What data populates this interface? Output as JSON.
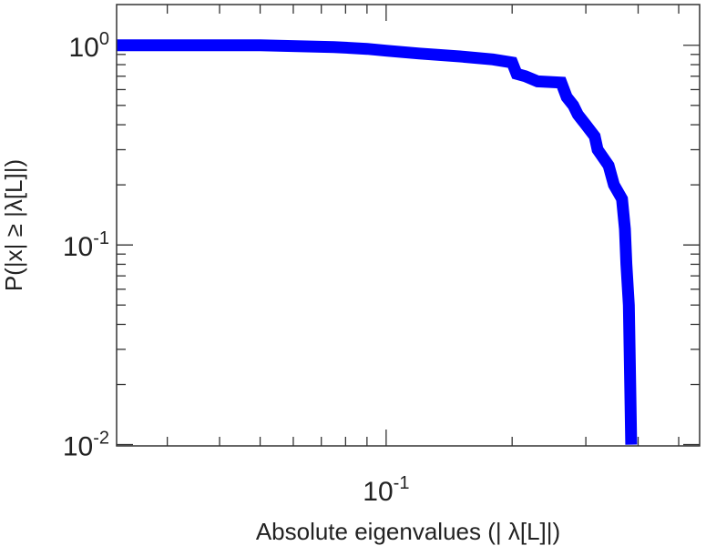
{
  "chart_data": {
    "type": "line",
    "title": "",
    "xlabel": "Absolute eigenvalues (|     λ[L]|)",
    "ylabel": "P(|x|  ≥ |λ[L]|)",
    "x_scale": "log",
    "y_scale": "log",
    "xlim": [
      0.0227,
      0.561
    ],
    "ylim": [
      0.00985,
      1.6
    ],
    "grid": false,
    "legend": "none",
    "line_color": "#0000ff",
    "x_ticks": [
      {
        "base": "10",
        "exp": "-1",
        "value": 0.1
      }
    ],
    "y_ticks": [
      {
        "base": "10",
        "exp": "0",
        "value": 1
      },
      {
        "base": "10",
        "exp": "-1",
        "value": 0.1
      },
      {
        "base": "10",
        "exp": "-2",
        "value": 0.01
      }
    ],
    "series": [
      {
        "values": [
          {
            "x": 0.0227,
            "y": 1.0
          },
          {
            "x": 0.05,
            "y": 1.0
          },
          {
            "x": 0.075,
            "y": 0.98
          },
          {
            "x": 0.09,
            "y": 0.96
          },
          {
            "x": 0.1,
            "y": 0.94
          },
          {
            "x": 0.12,
            "y": 0.91
          },
          {
            "x": 0.15,
            "y": 0.88
          },
          {
            "x": 0.18,
            "y": 0.85
          },
          {
            "x": 0.2,
            "y": 0.82
          },
          {
            "x": 0.205,
            "y": 0.72
          },
          {
            "x": 0.215,
            "y": 0.7
          },
          {
            "x": 0.23,
            "y": 0.66
          },
          {
            "x": 0.262,
            "y": 0.65
          },
          {
            "x": 0.27,
            "y": 0.55
          },
          {
            "x": 0.28,
            "y": 0.5
          },
          {
            "x": 0.287,
            "y": 0.45
          },
          {
            "x": 0.3,
            "y": 0.4
          },
          {
            "x": 0.315,
            "y": 0.35
          },
          {
            "x": 0.32,
            "y": 0.3
          },
          {
            "x": 0.34,
            "y": 0.25
          },
          {
            "x": 0.35,
            "y": 0.2
          },
          {
            "x": 0.366,
            "y": 0.17
          },
          {
            "x": 0.372,
            "y": 0.12
          },
          {
            "x": 0.375,
            "y": 0.08
          },
          {
            "x": 0.38,
            "y": 0.05
          },
          {
            "x": 0.383,
            "y": 0.02
          },
          {
            "x": 0.385,
            "y": 0.01
          }
        ]
      }
    ]
  }
}
